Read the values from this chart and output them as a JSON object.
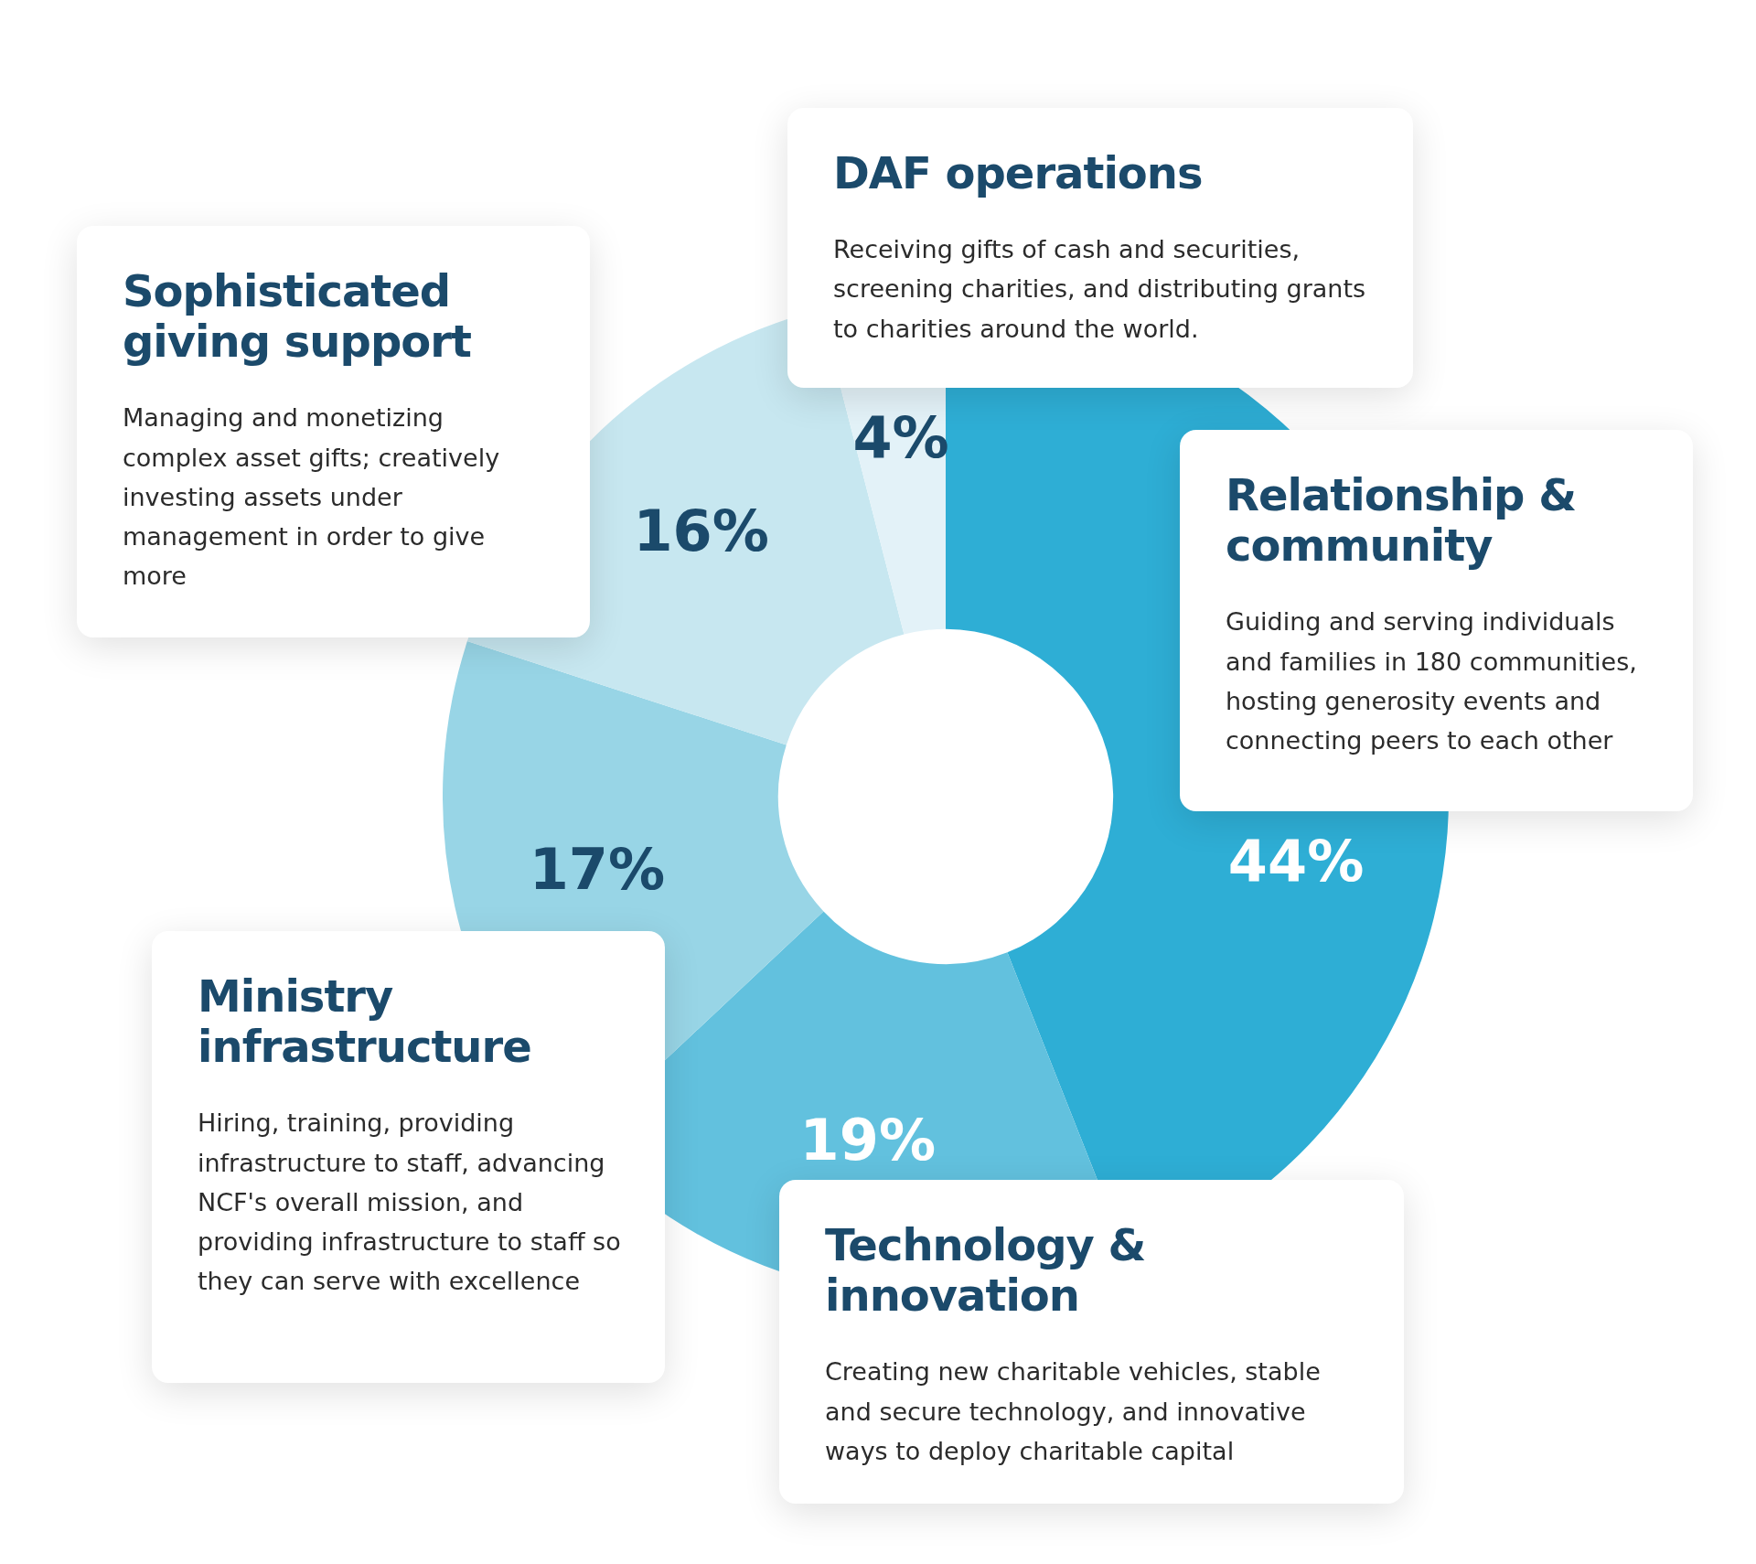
{
  "chart_data": {
    "type": "donut",
    "categories": [
      "Relationship & community",
      "Technology & innovation",
      "Ministry infrastructure",
      "Sophisticated giving support",
      "DAF operations"
    ],
    "values": [
      44,
      19,
      17,
      16,
      4
    ],
    "colors": [
      "#2eaed5",
      "#62c1de",
      "#98d5e6",
      "#c7e7f0",
      "#e3f2f8"
    ],
    "value_labels": [
      "44%",
      "19%",
      "17%",
      "16%",
      "4%"
    ],
    "annotations": [
      "Guiding and serving individuals and families in 180 communities, hosting generosity events and connecting peers to each other",
      "Creating new charitable vehicles, stable and secure technology, and innovative ways to deploy charitable capital",
      "Hiring, training, providing infrastructure to staff, advancing NCF's overall mission, and providing infrastructure to staff so they can serve with excellence",
      "Managing and monetizing complex asset gifts; creatively investing assets under management in order to give more",
      "Receiving gifts of cash and securities, screening charities, and distributing grants to charities around the world."
    ],
    "legend": false
  }
}
